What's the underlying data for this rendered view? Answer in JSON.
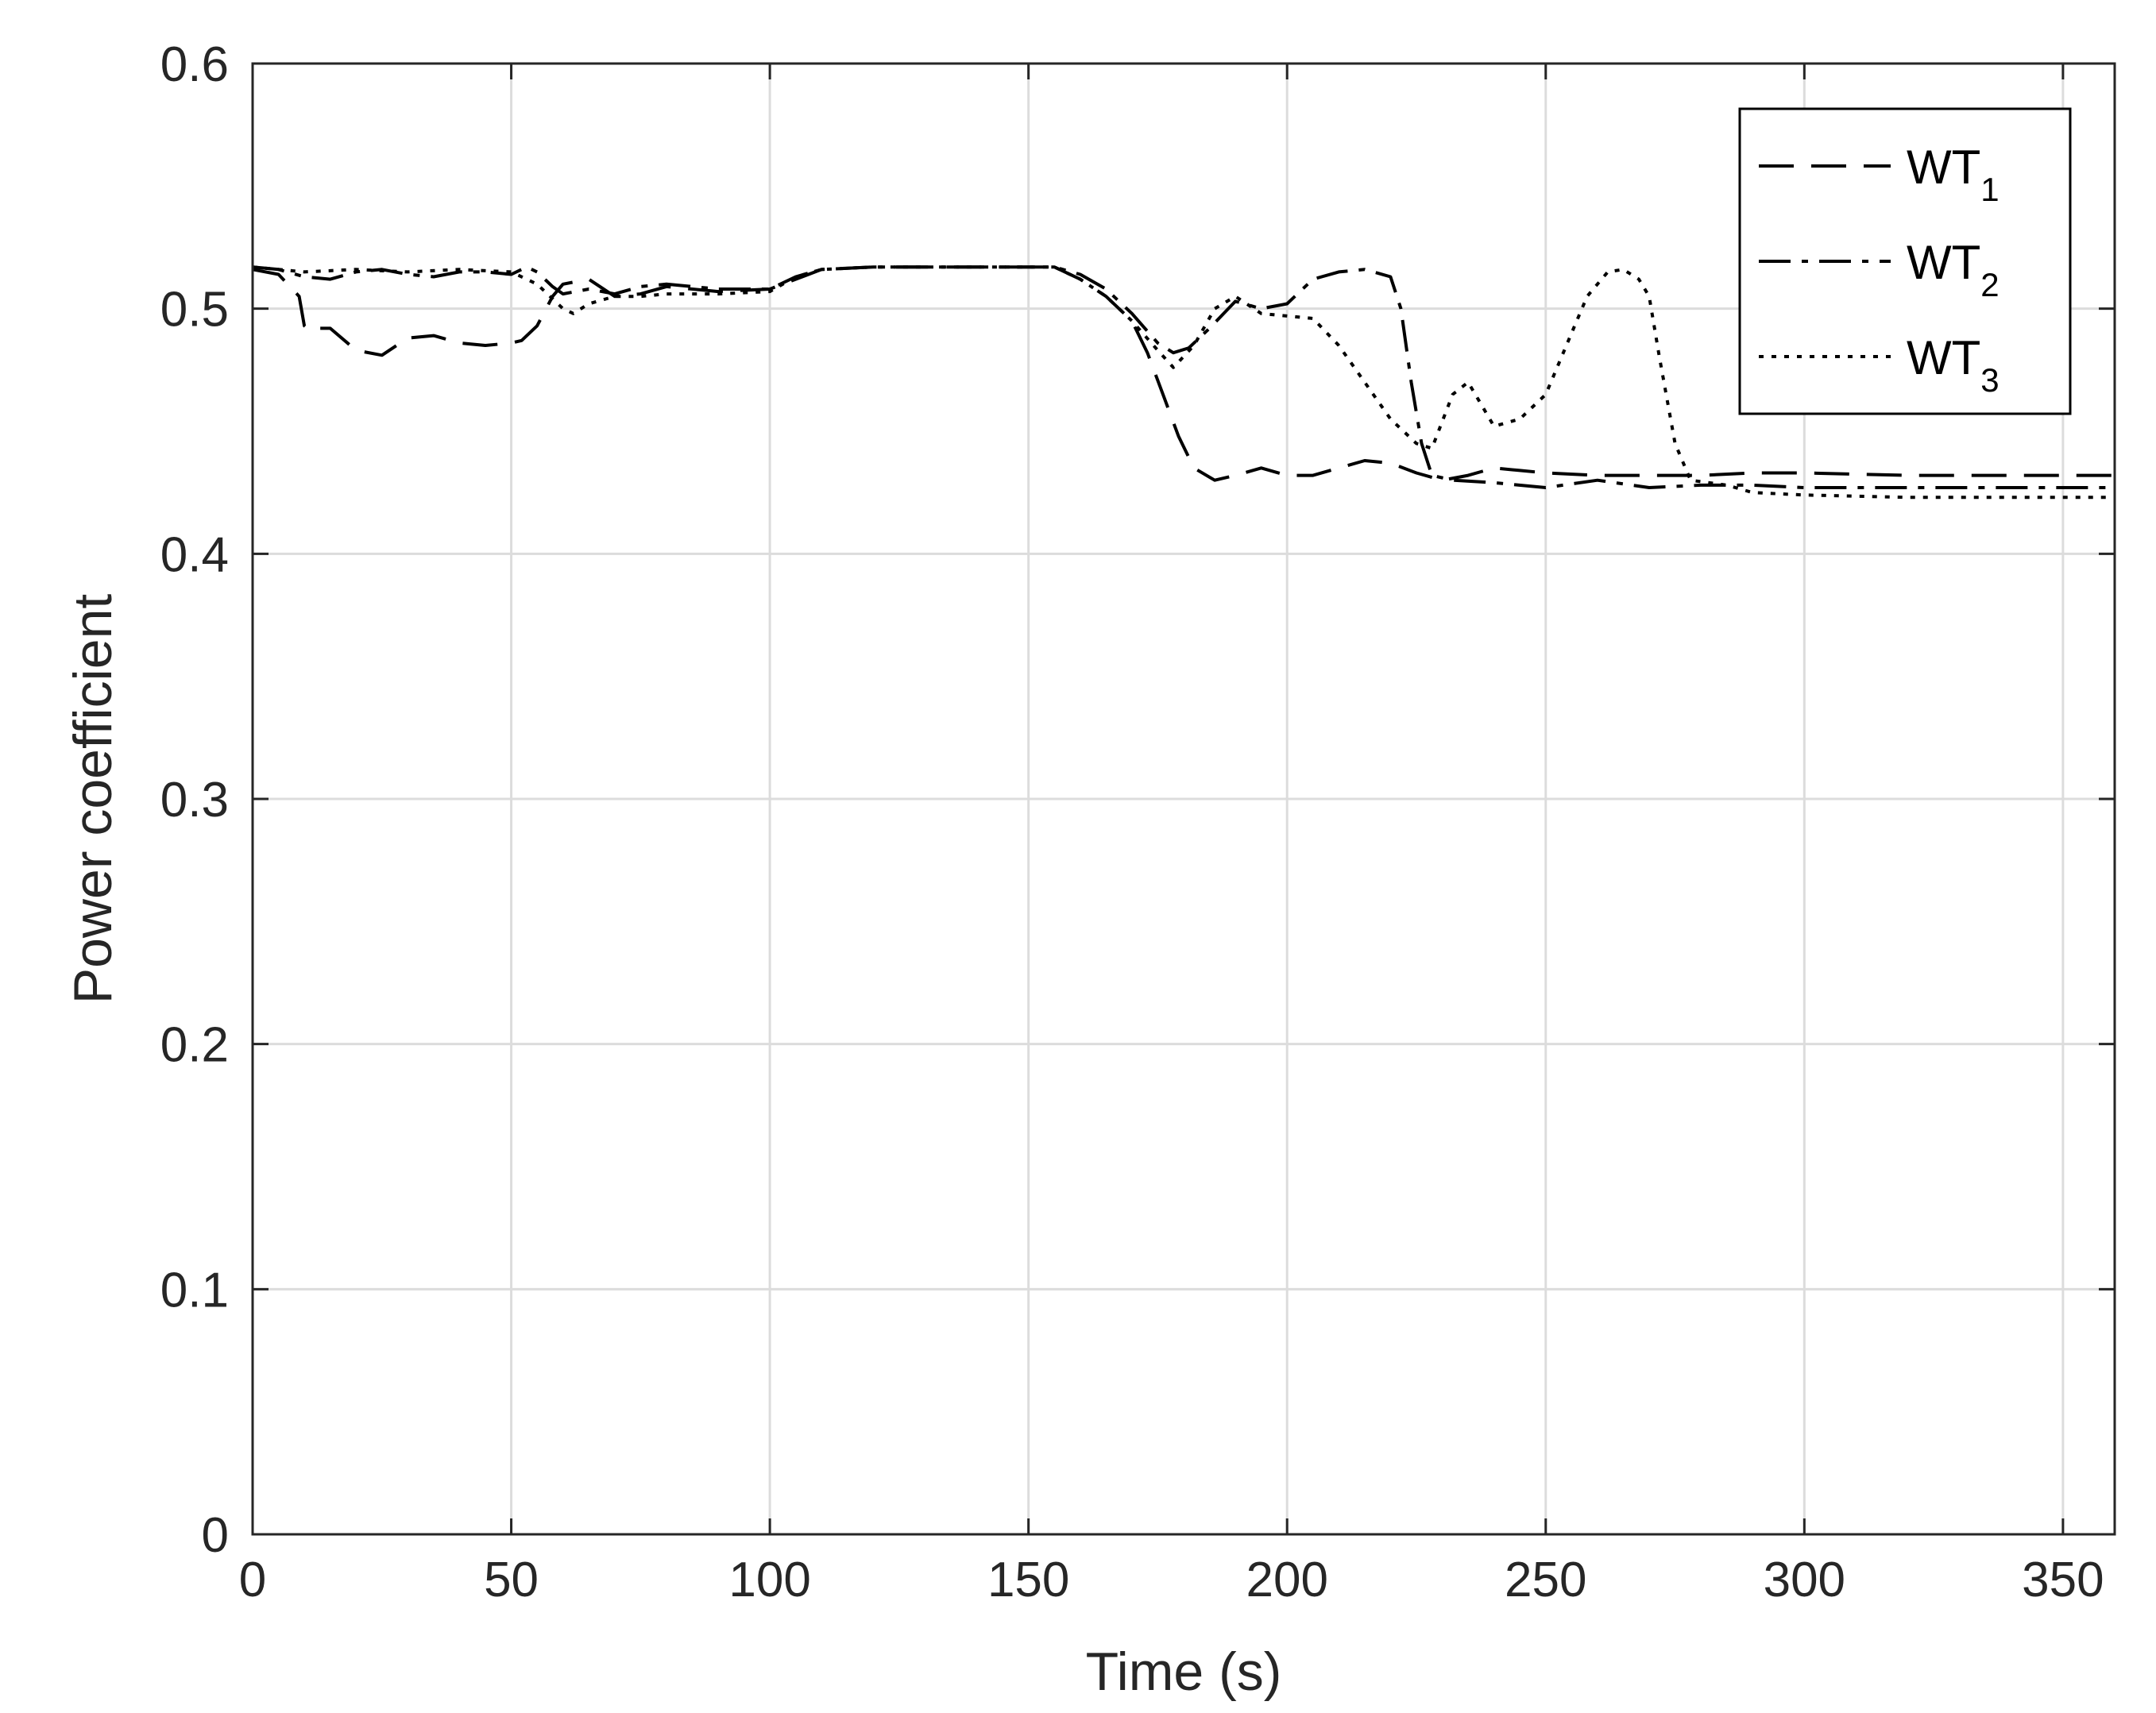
{
  "chart_data": {
    "type": "line",
    "title": "",
    "xlabel": "Time (s)",
    "ylabel": "Power coefficient",
    "xlim": [
      0,
      360
    ],
    "ylim": [
      0,
      0.6
    ],
    "xticks": [
      0,
      50,
      100,
      150,
      200,
      250,
      300,
      350
    ],
    "yticks": [
      0,
      0.1,
      0.2,
      0.3,
      0.4,
      0.5,
      0.6
    ],
    "xtick_labels": [
      "0",
      "50",
      "100",
      "150",
      "200",
      "250",
      "300",
      "350"
    ],
    "ytick_labels": [
      "0",
      "0.1",
      "0.2",
      "0.3",
      "0.4",
      "0.5",
      "0.6"
    ],
    "grid": true,
    "legend_position": "top-right",
    "line_color": "#000000",
    "series": [
      {
        "name": "WT",
        "subscript": "1",
        "dash": "dashed",
        "x": [
          0,
          5,
          9,
          10,
          11,
          12,
          15,
          20,
          25,
          30,
          35,
          40,
          45,
          50,
          52,
          55,
          58,
          60,
          65,
          70,
          75,
          80,
          90,
          100,
          105,
          110,
          120,
          140,
          155,
          160,
          165,
          170,
          173,
          176,
          179,
          182,
          186,
          190,
          195,
          200,
          205,
          210,
          215,
          220,
          225,
          230,
          235,
          240,
          245,
          250,
          260,
          270,
          280,
          290,
          300,
          320,
          340,
          360
        ],
        "y": [
          0.516,
          0.514,
          0.505,
          0.493,
          0.491,
          0.492,
          0.492,
          0.483,
          0.481,
          0.488,
          0.489,
          0.486,
          0.485,
          0.486,
          0.487,
          0.493,
          0.505,
          0.51,
          0.512,
          0.505,
          0.506,
          0.509,
          0.507,
          0.508,
          0.512,
          0.516,
          0.517,
          0.517,
          0.517,
          0.512,
          0.505,
          0.495,
          0.482,
          0.465,
          0.448,
          0.435,
          0.43,
          0.432,
          0.435,
          0.432,
          0.432,
          0.435,
          0.438,
          0.437,
          0.433,
          0.43,
          0.432,
          0.435,
          0.434,
          0.433,
          0.432,
          0.432,
          0.432,
          0.433,
          0.433,
          0.432,
          0.432,
          0.432
        ]
      },
      {
        "name": "WT",
        "subscript": "2",
        "dash": "dashdot",
        "x": [
          0,
          5,
          10,
          15,
          20,
          25,
          30,
          35,
          40,
          45,
          50,
          53,
          55,
          58,
          60,
          65,
          70,
          75,
          80,
          90,
          100,
          105,
          110,
          120,
          140,
          155,
          160,
          165,
          170,
          175,
          178,
          181,
          185,
          190,
          195,
          200,
          205,
          210,
          215,
          220,
          222,
          224,
          226,
          228,
          232,
          240,
          250,
          260,
          270,
          280,
          290,
          300,
          320,
          340,
          360
        ],
        "y": [
          0.517,
          0.516,
          0.513,
          0.512,
          0.515,
          0.516,
          0.514,
          0.513,
          0.515,
          0.515,
          0.514,
          0.517,
          0.515,
          0.509,
          0.506,
          0.508,
          0.506,
          0.509,
          0.51,
          0.508,
          0.508,
          0.513,
          0.516,
          0.517,
          0.517,
          0.517,
          0.514,
          0.508,
          0.498,
          0.486,
          0.482,
          0.484,
          0.492,
          0.503,
          0.5,
          0.502,
          0.512,
          0.515,
          0.516,
          0.513,
          0.5,
          0.47,
          0.445,
          0.432,
          0.43,
          0.429,
          0.427,
          0.43,
          0.427,
          0.428,
          0.428,
          0.427,
          0.427,
          0.427,
          0.427
        ]
      },
      {
        "name": "WT",
        "subscript": "3",
        "dash": "dotted",
        "x": [
          0,
          5,
          10,
          20,
          30,
          40,
          50,
          55,
          60,
          62,
          65,
          70,
          75,
          80,
          90,
          100,
          105,
          110,
          120,
          140,
          155,
          160,
          165,
          170,
          175,
          178,
          182,
          186,
          190,
          195,
          200,
          205,
          210,
          215,
          220,
          225,
          228,
          232,
          235,
          240,
          245,
          250,
          255,
          258,
          262,
          265,
          268,
          270,
          272,
          275,
          278,
          285,
          290,
          300,
          320,
          340,
          360
        ],
        "y": [
          0.517,
          0.516,
          0.515,
          0.516,
          0.515,
          0.516,
          0.515,
          0.51,
          0.5,
          0.498,
          0.502,
          0.505,
          0.505,
          0.506,
          0.506,
          0.507,
          0.513,
          0.516,
          0.517,
          0.517,
          0.517,
          0.512,
          0.505,
          0.495,
          0.483,
          0.476,
          0.485,
          0.5,
          0.505,
          0.498,
          0.497,
          0.496,
          0.485,
          0.47,
          0.455,
          0.445,
          0.443,
          0.465,
          0.47,
          0.452,
          0.455,
          0.465,
          0.49,
          0.505,
          0.515,
          0.516,
          0.512,
          0.505,
          0.48,
          0.445,
          0.43,
          0.428,
          0.425,
          0.424,
          0.423,
          0.423,
          0.423
        ]
      }
    ]
  }
}
